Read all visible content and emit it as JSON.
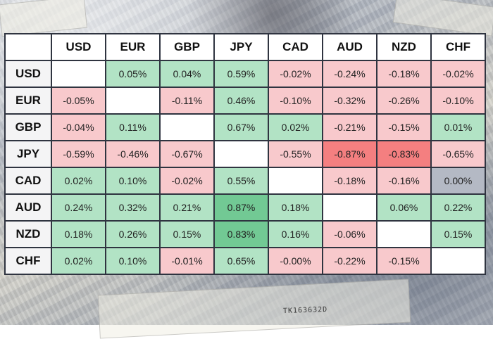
{
  "background": {
    "serial_text": "TK163632D",
    "banknote": "yen banknotes"
  },
  "matrix": {
    "columns": [
      "USD",
      "EUR",
      "GBP",
      "JPY",
      "CAD",
      "AUD",
      "NZD",
      "CHF"
    ],
    "rows": [
      {
        "label": "USD",
        "cells": [
          "",
          "0.05%",
          "0.04%",
          "0.59%",
          "-0.02%",
          "-0.24%",
          "-0.18%",
          "-0.02%"
        ]
      },
      {
        "label": "EUR",
        "cells": [
          "-0.05%",
          "",
          "-0.11%",
          "0.46%",
          "-0.10%",
          "-0.32%",
          "-0.26%",
          "-0.10%"
        ]
      },
      {
        "label": "GBP",
        "cells": [
          "-0.04%",
          "0.11%",
          "",
          "0.67%",
          "0.02%",
          "-0.21%",
          "-0.15%",
          "0.01%"
        ]
      },
      {
        "label": "JPY",
        "cells": [
          "-0.59%",
          "-0.46%",
          "-0.67%",
          "",
          "-0.55%",
          "-0.87%",
          "-0.83%",
          "-0.65%"
        ]
      },
      {
        "label": "CAD",
        "cells": [
          "0.02%",
          "0.10%",
          "-0.02%",
          "0.55%",
          "",
          "-0.18%",
          "-0.16%",
          "0.00%"
        ]
      },
      {
        "label": "AUD",
        "cells": [
          "0.24%",
          "0.32%",
          "0.21%",
          "0.87%",
          "0.18%",
          "",
          "0.06%",
          "0.22%"
        ]
      },
      {
        "label": "NZD",
        "cells": [
          "0.18%",
          "0.26%",
          "0.15%",
          "0.83%",
          "0.16%",
          "-0.06%",
          "",
          "0.15%"
        ]
      },
      {
        "label": "CHF",
        "cells": [
          "0.02%",
          "0.10%",
          "-0.01%",
          "0.65%",
          "-0.00%",
          "-0.22%",
          "-0.15%",
          ""
        ]
      }
    ]
  },
  "colors": {
    "positive": "#b2e3c5",
    "positive_strong": "#72c994",
    "negative": "#f8c9cc",
    "negative_strong": "#f47f80",
    "neutral": "#b4b9c4",
    "diagonal": "#ffffff",
    "border": "#2f3440"
  }
}
